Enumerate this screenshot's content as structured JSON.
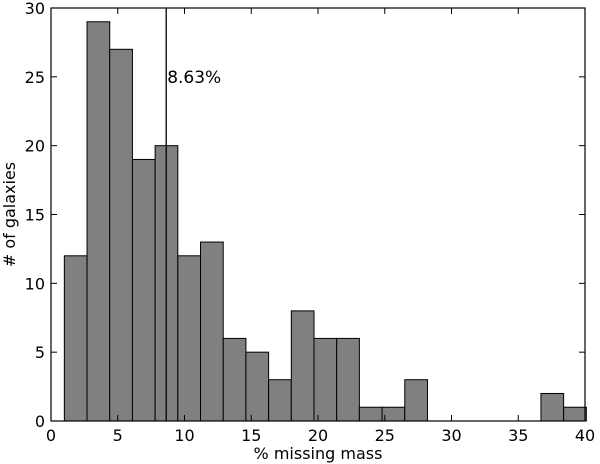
{
  "chart_data": {
    "type": "bar",
    "subtype": "histogram",
    "title": "",
    "xlabel": "% missing mass",
    "ylabel": "# of galaxies",
    "xlim": [
      0,
      40
    ],
    "ylim": [
      0,
      30
    ],
    "xticks": [
      0,
      5,
      10,
      15,
      20,
      25,
      30,
      35,
      40
    ],
    "yticks": [
      0,
      5,
      10,
      15,
      20,
      25,
      30
    ],
    "bin_width": 1.7,
    "bins": [
      {
        "x0": 1.0,
        "x1": 2.7,
        "count": 12
      },
      {
        "x0": 2.7,
        "x1": 4.4,
        "count": 29
      },
      {
        "x0": 4.4,
        "x1": 6.1,
        "count": 27
      },
      {
        "x0": 6.1,
        "x1": 7.8,
        "count": 19
      },
      {
        "x0": 7.8,
        "x1": 9.5,
        "count": 20
      },
      {
        "x0": 9.5,
        "x1": 11.2,
        "count": 12
      },
      {
        "x0": 11.2,
        "x1": 12.9,
        "count": 13
      },
      {
        "x0": 12.9,
        "x1": 14.6,
        "count": 6
      },
      {
        "x0": 14.6,
        "x1": 16.3,
        "count": 5
      },
      {
        "x0": 16.3,
        "x1": 18.0,
        "count": 3
      },
      {
        "x0": 18.0,
        "x1": 19.7,
        "count": 8
      },
      {
        "x0": 19.7,
        "x1": 21.4,
        "count": 6
      },
      {
        "x0": 21.4,
        "x1": 23.1,
        "count": 6
      },
      {
        "x0": 23.1,
        "x1": 24.8,
        "count": 1
      },
      {
        "x0": 24.8,
        "x1": 26.5,
        "count": 1
      },
      {
        "x0": 26.5,
        "x1": 28.2,
        "count": 3
      },
      {
        "x0": 28.2,
        "x1": 29.9,
        "count": 0
      },
      {
        "x0": 29.9,
        "x1": 31.6,
        "count": 0
      },
      {
        "x0": 31.6,
        "x1": 33.3,
        "count": 0
      },
      {
        "x0": 33.3,
        "x1": 35.0,
        "count": 0
      },
      {
        "x0": 35.0,
        "x1": 36.7,
        "count": 0
      },
      {
        "x0": 36.7,
        "x1": 38.4,
        "count": 2
      },
      {
        "x0": 38.4,
        "x1": 40.1,
        "count": 1
      }
    ],
    "reference_line": {
      "x": 8.63,
      "label": "8.63%"
    },
    "bar_color": "#808080",
    "bar_edge_color": "#000000",
    "grid": false
  }
}
